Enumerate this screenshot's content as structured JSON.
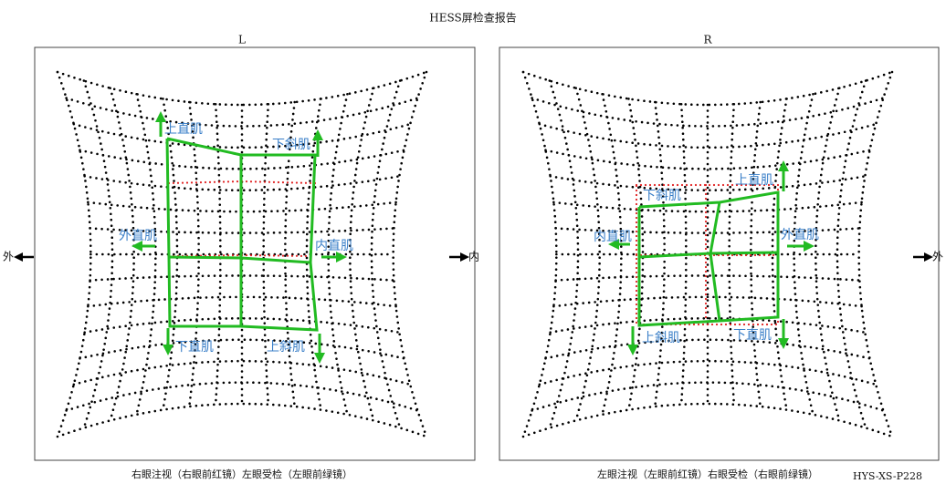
{
  "title": "HESS屏检查报告",
  "panels": [
    {
      "label": "L",
      "muscles": [
        "上直肌",
        "下斜肌",
        "外直肌",
        "内直肌",
        "下直肌",
        "上斜肌"
      ],
      "caption": "右眼注视（右眼前红镜）左眼受检（左眼前绿镜）"
    },
    {
      "label": "R",
      "muscles": [
        "上直肌",
        "下斜肌",
        "内直肌",
        "外直肌",
        "上斜肌",
        "下直肌"
      ],
      "caption": "左眼注视（左眼前红镜）右眼受检（右眼前绿镜）"
    }
  ],
  "sides": [
    "外",
    "内",
    "外"
  ],
  "code": "HYS-XS-P228"
}
